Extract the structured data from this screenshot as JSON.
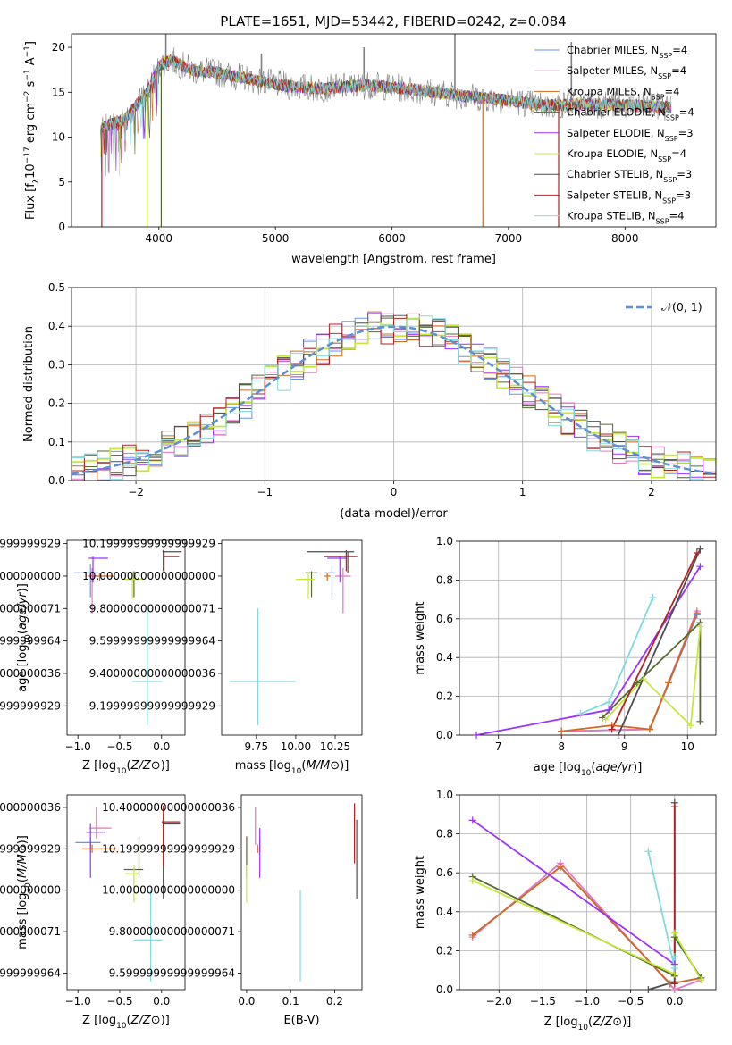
{
  "figure_title": "PLATE=1651, MJD=53442, FIBERID=0242, z=0.084",
  "colors": {
    "Chabrier MILES": "#6495ed",
    "Salpeter MILES": "#e377c2",
    "Kroupa MILES": "#d2691e",
    "Chabrier ELODIE": "#556b2f",
    "Salpeter ELODIE": "#9b30ff",
    "Kroupa ELODIE": "#c7e83a",
    "Chabrier STELIB": "#4d4d4d",
    "Salpeter STELIB": "#b22222",
    "Kroupa STELIB": "#7fdbe0",
    "data": "#808080",
    "gaussian": "#5b8fd6"
  },
  "chart_data": [
    {
      "id": "spectrum",
      "type": "line",
      "title": "PLATE=1651, MJD=53442, FIBERID=0242, z=0.084",
      "xlabel": "wavelength [Angstrom, rest frame]",
      "ylabel_parts": [
        "Flux [f",
        "λ",
        "10",
        "−17",
        " erg cm",
        "−2",
        " s",
        "−1",
        " A",
        "−1",
        "]"
      ],
      "xlim": [
        3250,
        8780
      ],
      "ylim": [
        0,
        21.5
      ],
      "xticks": [
        4000,
        5000,
        6000,
        7000,
        8000
      ],
      "yticks": [
        0,
        5,
        10,
        15,
        20
      ],
      "legend_position": "top-right",
      "continuum": {
        "x": [
          3500,
          3700,
          3900,
          4000,
          4100,
          4300,
          4500,
          4800,
          5100,
          5400,
          5800,
          6200,
          6600,
          7000,
          7300,
          7700,
          8100,
          8400
        ],
        "y": [
          11.0,
          12.0,
          15.0,
          18.0,
          18.6,
          17.4,
          17.2,
          16.4,
          15.7,
          15.4,
          15.8,
          15.3,
          14.6,
          14.1,
          13.5,
          13.7,
          13.5,
          13.3
        ]
      },
      "data_spikes": [
        {
          "x": 6540,
          "y": 21.5
        },
        {
          "x": 7540,
          "y": 20.6
        },
        {
          "x": 5760,
          "y": 20.0
        },
        {
          "x": 4880,
          "y": 19.3
        },
        {
          "x": 4060,
          "y": 21.5
        }
      ],
      "model_dips": [
        {
          "x": 3510,
          "y": 0,
          "series": "Salpeter STELIB"
        },
        {
          "x": 3900,
          "y": 0,
          "series": "Kroupa ELODIE"
        },
        {
          "x": 4020,
          "y": 0,
          "series": "Chabrier ELODIE"
        },
        {
          "x": 6780,
          "y": 0,
          "series": "Kroupa MILES"
        },
        {
          "x": 7430,
          "y": 0,
          "series": "Salpeter STELIB"
        }
      ],
      "series": [
        {
          "name": "Chabrier MILES",
          "nssp": "4"
        },
        {
          "name": "Salpeter MILES",
          "nssp": "4"
        },
        {
          "name": "Kroupa MILES",
          "nssp": "4"
        },
        {
          "name": "Chabrier ELODIE",
          "nssp": "4"
        },
        {
          "name": "Salpeter ELODIE",
          "nssp": "3"
        },
        {
          "name": "Kroupa ELODIE",
          "nssp": "4"
        },
        {
          "name": "Chabrier STELIB",
          "nssp": "3"
        },
        {
          "name": "Salpeter STELIB",
          "nssp": "3"
        },
        {
          "name": "Kroupa STELIB",
          "nssp": "4"
        }
      ],
      "legend_subscript": "SSP"
    },
    {
      "id": "residuals",
      "type": "line",
      "xlabel": "(data-model)/error",
      "ylabel": "Normed distribution",
      "xlim": [
        -2.5,
        2.5
      ],
      "ylim": [
        0,
        0.5
      ],
      "xticks": [
        -2,
        -1,
        0,
        1,
        2
      ],
      "yticks": [
        0.0,
        0.1,
        0.2,
        0.3,
        0.4,
        0.5
      ],
      "grid": true,
      "bin_width": 0.1,
      "legend_position": "top-right",
      "legend_label": "𝒩(0, 1)",
      "gaussian": {
        "mu": 0,
        "sigma": 1
      }
    },
    {
      "id": "age-vs-Z",
      "type": "errorbar",
      "xlabel": "Z [log10(Z/Z☉)]",
      "ylabel": "age  [log10(age/yr)]",
      "xlim": [
        -1.13,
        0.28
      ],
      "ylim": [
        9.02,
        10.22
      ],
      "xticks": [
        -1.0,
        -0.5,
        0.0
      ],
      "yticks": [
        9.2,
        9.4,
        9.6,
        9.8,
        10.0,
        10.2
      ],
      "points": [
        {
          "series": "Chabrier MILES",
          "x": -0.85,
          "y": 10.02,
          "xerr": [
            0.2,
            0.1
          ],
          "yerr": [
            0.15,
            0.05
          ]
        },
        {
          "series": "Salpeter MILES",
          "x": -0.83,
          "y": 10.0,
          "xerr": [
            0.05,
            0.1
          ],
          "yerr": [
            0.23,
            0.05
          ]
        },
        {
          "series": "Kroupa MILES",
          "x": -0.74,
          "y": 10.0,
          "xerr": [
            0.12,
            0.18
          ],
          "yerr": [
            0.03,
            0.02
          ]
        },
        {
          "series": "Chabrier ELODIE",
          "x": -0.33,
          "y": 10.02,
          "xerr": [
            0.12,
            0.05
          ],
          "yerr": [
            0.15,
            0.01
          ]
        },
        {
          "series": "Salpeter ELODIE",
          "x": -0.82,
          "y": 10.11,
          "xerr": [
            0.05,
            0.18
          ],
          "yerr": [
            0.15,
            0.01
          ]
        },
        {
          "series": "Kroupa ELODIE",
          "x": -0.35,
          "y": 9.98,
          "xerr": [
            0.12,
            0.12
          ],
          "yerr": [
            0.12,
            0.04
          ]
        },
        {
          "series": "Chabrier STELIB",
          "x": 0.02,
          "y": 10.15,
          "xerr": [
            0.01,
            0.22
          ],
          "yerr": [
            0.12,
            0.01
          ]
        },
        {
          "series": "Salpeter STELIB",
          "x": 0.03,
          "y": 10.12,
          "xerr": [
            0.01,
            0.18
          ],
          "yerr": [
            0.1,
            0.03
          ]
        },
        {
          "series": "Kroupa STELIB",
          "x": -0.17,
          "y": 9.35,
          "xerr": [
            0.18,
            0.18
          ],
          "yerr": [
            0.27,
            0.45
          ]
        }
      ]
    },
    {
      "id": "age-vs-mass",
      "type": "errorbar",
      "xlabel": "mass [log10(M/M☉)]",
      "ylabel": "",
      "xlim": [
        9.53,
        10.42
      ],
      "ylim": [
        9.02,
        10.22
      ],
      "xticks": [
        9.75,
        10.0,
        10.25
      ],
      "yticks": [
        9.2,
        9.4,
        9.6,
        9.8,
        10.0,
        10.2
      ],
      "points": [
        {
          "series": "Chabrier MILES",
          "x": 10.23,
          "y": 10.02,
          "xerr": [
            0.05,
            0.02
          ],
          "yerr": [
            0.15,
            0.05
          ]
        },
        {
          "series": "Salpeter MILES",
          "x": 10.3,
          "y": 10.0,
          "xerr": [
            0.05,
            0.05
          ],
          "yerr": [
            0.23,
            0.05
          ]
        },
        {
          "series": "Kroupa MILES",
          "x": 10.2,
          "y": 10.0,
          "xerr": [
            0.02,
            0.02
          ],
          "yerr": [
            0.03,
            0.02
          ]
        },
        {
          "series": "Chabrier ELODIE",
          "x": 10.1,
          "y": 10.02,
          "xerr": [
            0.04,
            0.04
          ],
          "yerr": [
            0.15,
            0.01
          ]
        },
        {
          "series": "Salpeter ELODIE",
          "x": 10.28,
          "y": 10.11,
          "xerr": [
            0.08,
            0.04
          ],
          "yerr": [
            0.15,
            0.01
          ]
        },
        {
          "series": "Kroupa ELODIE",
          "x": 10.08,
          "y": 9.98,
          "xerr": [
            0.08,
            0.04
          ],
          "yerr": [
            0.12,
            0.04
          ]
        },
        {
          "series": "Chabrier STELIB",
          "x": 10.32,
          "y": 10.15,
          "xerr": [
            0.25,
            0.05
          ],
          "yerr": [
            0.12,
            0.01
          ]
        },
        {
          "series": "Salpeter STELIB",
          "x": 10.33,
          "y": 10.12,
          "xerr": [
            0.15,
            0.06
          ],
          "yerr": [
            0.1,
            0.03
          ]
        },
        {
          "series": "Kroupa STELIB",
          "x": 9.76,
          "y": 9.35,
          "xerr": [
            0.18,
            0.24
          ],
          "yerr": [
            0.27,
            0.45
          ]
        }
      ]
    },
    {
      "id": "weight-vs-age",
      "type": "line",
      "xlabel": "age  [log10(age/yr)]",
      "ylabel": "mass weight",
      "xlim": [
        6.38,
        10.45
      ],
      "ylim": [
        0,
        1.0
      ],
      "xticks": [
        7,
        8,
        9,
        10
      ],
      "yticks": [
        0.0,
        0.2,
        0.4,
        0.6,
        0.8,
        1.0
      ],
      "grid": true,
      "series": [
        {
          "name": "Chabrier MILES",
          "x": [
            8.0,
            9.4,
            10.15
          ],
          "y": [
            0.02,
            0.03,
            0.62
          ]
        },
        {
          "name": "Salpeter MILES",
          "x": [
            8.0,
            9.4,
            10.15
          ],
          "y": [
            0.02,
            0.03,
            0.64
          ]
        },
        {
          "name": "Kroupa MILES",
          "x": [
            8.0,
            8.8,
            9.4,
            9.7,
            10.15
          ],
          "y": [
            0.02,
            0.05,
            0.03,
            0.27,
            0.63
          ]
        },
        {
          "name": "Chabrier ELODIE",
          "x": [
            8.65,
            9.2,
            10.2,
            10.2
          ],
          "y": [
            0.09,
            0.27,
            0.58,
            0.07
          ]
        },
        {
          "name": "Salpeter ELODIE",
          "x": [
            6.65,
            8.75,
            10.2
          ],
          "y": [
            0.0,
            0.13,
            0.87
          ]
        },
        {
          "name": "Kroupa ELODIE",
          "x": [
            8.7,
            9.3,
            10.05,
            10.2
          ],
          "y": [
            0.08,
            0.29,
            0.05,
            0.56
          ]
        },
        {
          "name": "Chabrier STELIB",
          "x": [
            8.9,
            10.2
          ],
          "y": [
            0.0,
            0.96
          ]
        },
        {
          "name": "Salpeter STELIB",
          "x": [
            8.8,
            10.15
          ],
          "y": [
            0.03,
            0.94
          ]
        },
        {
          "name": "Kroupa STELIB",
          "x": [
            8.3,
            8.75,
            9.45
          ],
          "y": [
            0.11,
            0.17,
            0.71
          ]
        }
      ]
    },
    {
      "id": "mass-vs-Z",
      "type": "errorbar",
      "xlabel": "Z [log10(Z/Z☉)]",
      "ylabel": "mass [log10(M/M☉)]",
      "xlim": [
        -1.13,
        0.28
      ],
      "ylim": [
        9.52,
        10.46
      ],
      "xticks": [
        -1.0,
        -0.5,
        0.0
      ],
      "yticks": [
        9.6,
        9.8,
        10.0,
        10.2,
        10.4
      ],
      "points": [
        {
          "series": "Chabrier MILES",
          "x": -0.85,
          "y": 10.23,
          "xerr": [
            0.18,
            0.12
          ],
          "yerr": [
            0.05,
            0.02
          ]
        },
        {
          "series": "Salpeter MILES",
          "x": -0.78,
          "y": 10.3,
          "xerr": [
            0.08,
            0.18
          ],
          "yerr": [
            0.05,
            0.1
          ]
        },
        {
          "series": "Kroupa MILES",
          "x": -0.83,
          "y": 10.2,
          "xerr": [
            0.12,
            0.3
          ],
          "yerr": [
            0.02,
            0.02
          ]
        },
        {
          "series": "Chabrier ELODIE",
          "x": -0.27,
          "y": 10.1,
          "xerr": [
            0.18,
            0.05
          ],
          "yerr": [
            0.04,
            0.16
          ]
        },
        {
          "series": "Salpeter ELODIE",
          "x": -0.85,
          "y": 10.28,
          "xerr": [
            0.05,
            0.18
          ],
          "yerr": [
            0.22,
            0.04
          ]
        },
        {
          "series": "Kroupa ELODIE",
          "x": -0.33,
          "y": 10.08,
          "xerr": [
            0.1,
            0.05
          ],
          "yerr": [
            0.14,
            0.04
          ]
        },
        {
          "series": "Chabrier STELIB",
          "x": 0.02,
          "y": 10.32,
          "xerr": [
            0.01,
            0.2
          ],
          "yerr": [
            0.36,
            0.02
          ]
        },
        {
          "series": "Salpeter STELIB",
          "x": 0.02,
          "y": 10.33,
          "xerr": [
            0.02,
            0.2
          ],
          "yerr": [
            0.21,
            0.08
          ]
        },
        {
          "series": "Kroupa STELIB",
          "x": -0.13,
          "y": 9.76,
          "xerr": [
            0.2,
            0.14
          ],
          "yerr": [
            0.2,
            0.24
          ]
        }
      ]
    },
    {
      "id": "mass-vs-ebv",
      "type": "errorbar",
      "xlabel": "E(B-V)",
      "ylabel": "",
      "xlim": [
        -0.012,
        0.262
      ],
      "ylim": [
        9.52,
        10.46
      ],
      "xticks": [
        0.0,
        0.1,
        0.2
      ],
      "yticks": [
        9.6,
        9.8,
        10.0,
        10.2,
        10.4
      ],
      "points": [
        {
          "series": "Chabrier MILES",
          "x": 0.03,
          "y": 10.23,
          "xerr": [
            0.001,
            0.001
          ],
          "yerr": [
            0.05,
            0.02
          ]
        },
        {
          "series": "Salpeter MILES",
          "x": 0.02,
          "y": 10.3,
          "xerr": [
            0.001,
            0.001
          ],
          "yerr": [
            0.08,
            0.1
          ]
        },
        {
          "series": "Kroupa MILES",
          "x": 0.025,
          "y": 10.2,
          "xerr": [
            0.001,
            0.001
          ],
          "yerr": [
            0.02,
            0.02
          ]
        },
        {
          "series": "Chabrier ELODIE",
          "x": 0.0,
          "y": 10.1,
          "xerr": [
            0.001,
            0.001
          ],
          "yerr": [
            0.04,
            0.16
          ]
        },
        {
          "series": "Salpeter ELODIE",
          "x": 0.03,
          "y": 10.28,
          "xerr": [
            0.001,
            0.001
          ],
          "yerr": [
            0.22,
            0.02
          ]
        },
        {
          "series": "Kroupa ELODIE",
          "x": 0.0,
          "y": 10.08,
          "xerr": [
            0.001,
            0.001
          ],
          "yerr": [
            0.14,
            0.04
          ]
        },
        {
          "series": "Chabrier STELIB",
          "x": 0.25,
          "y": 10.32,
          "xerr": [
            0.001,
            0.001
          ],
          "yerr": [
            0.36,
            0.02
          ]
        },
        {
          "series": "Salpeter STELIB",
          "x": 0.245,
          "y": 10.33,
          "xerr": [
            0.001,
            0.001
          ],
          "yerr": [
            0.2,
            0.09
          ]
        },
        {
          "series": "Kroupa STELIB",
          "x": 0.122,
          "y": 9.76,
          "xerr": [
            0.001,
            0.001
          ],
          "yerr": [
            0.2,
            0.24
          ]
        }
      ]
    },
    {
      "id": "weight-vs-Z",
      "type": "line",
      "xlabel": "Z [log10(Z/Z☉)]",
      "ylabel": "mass weight",
      "xlim": [
        -2.45,
        0.47
      ],
      "ylim": [
        0,
        1.0
      ],
      "xticks": [
        -2.0,
        -1.5,
        -1.0,
        -0.5,
        0.0
      ],
      "yticks": [
        0.0,
        0.2,
        0.4,
        0.6,
        0.8,
        1.0
      ],
      "grid": true,
      "series": [
        {
          "name": "Chabrier MILES",
          "x": [
            -2.3,
            -1.3,
            -0.05,
            0.3
          ],
          "y": [
            0.28,
            0.63,
            0.03,
            0.06
          ]
        },
        {
          "name": "Salpeter MILES",
          "x": [
            -2.3,
            -1.3,
            0.0,
            0.3
          ],
          "y": [
            0.27,
            0.65,
            0.0,
            0.05
          ]
        },
        {
          "name": "Kroupa MILES",
          "x": [
            -2.3,
            -1.3,
            -0.05,
            0.3
          ],
          "y": [
            0.28,
            0.63,
            0.03,
            0.06
          ]
        },
        {
          "name": "Chabrier ELODIE",
          "x": [
            -2.3,
            0.0,
            0.0,
            0.3
          ],
          "y": [
            0.58,
            0.07,
            0.27,
            0.06
          ]
        },
        {
          "name": "Salpeter ELODIE",
          "x": [
            -2.3,
            0.0
          ],
          "y": [
            0.87,
            0.13
          ]
        },
        {
          "name": "Kroupa ELODIE",
          "x": [
            -2.3,
            0.0,
            0.0,
            0.3
          ],
          "y": [
            0.56,
            0.08,
            0.29,
            0.05
          ]
        },
        {
          "name": "Chabrier STELIB",
          "x": [
            -0.3,
            0.0,
            0.0
          ],
          "y": [
            0.0,
            0.04,
            0.96
          ]
        },
        {
          "name": "Salpeter STELIB",
          "x": [
            0.0,
            0.0
          ],
          "y": [
            0.03,
            0.94
          ]
        },
        {
          "name": "Kroupa STELIB",
          "x": [
            -0.3,
            0.0,
            0.0
          ],
          "y": [
            0.71,
            0.11,
            0.17
          ]
        }
      ]
    }
  ]
}
